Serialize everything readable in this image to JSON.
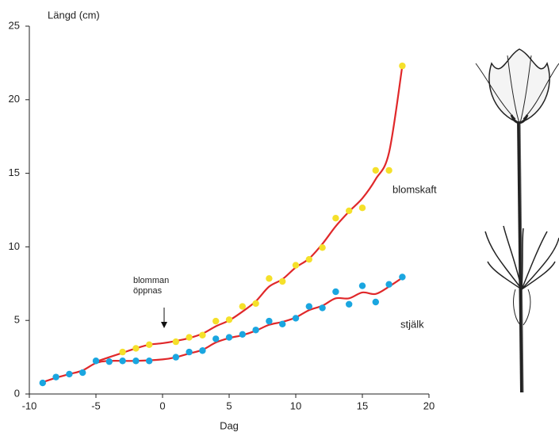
{
  "chart_data": {
    "type": "scatter",
    "title": "Längd (cm)",
    "xlabel": "Dag",
    "annotation": "blomman öppnas",
    "xlim": [
      -10,
      20
    ],
    "xticks": [
      -10,
      -5,
      0,
      5,
      10,
      15,
      20
    ],
    "ylim": [
      0,
      25
    ],
    "yticks": [
      0,
      5,
      10,
      15,
      20,
      25
    ],
    "grid": false,
    "series": [
      {
        "name": "blomskaft",
        "color": "#f5e02a",
        "line_color": "#e0282a",
        "x": [
          -3,
          -2,
          -1,
          1,
          2,
          3,
          4,
          5,
          6,
          7,
          8,
          9,
          10,
          11,
          12,
          13,
          14,
          15,
          16,
          17,
          18
        ],
        "values": [
          2.85,
          3.1,
          3.35,
          3.55,
          3.85,
          4.0,
          4.95,
          5.05,
          5.95,
          6.15,
          7.85,
          7.65,
          8.75,
          9.15,
          9.95,
          11.95,
          12.45,
          12.65,
          15.2,
          15.2,
          22.3
        ],
        "curve_x": [
          -5,
          -4,
          -3,
          -2,
          -1,
          0,
          1,
          2,
          3,
          4,
          5,
          6,
          7,
          8,
          9,
          10,
          11,
          12,
          13,
          14,
          15,
          16,
          17,
          18
        ],
        "curve_values": [
          2.2,
          2.5,
          2.8,
          3.1,
          3.35,
          3.45,
          3.6,
          3.8,
          4.1,
          4.6,
          5.0,
          5.6,
          6.3,
          7.3,
          7.8,
          8.6,
          9.2,
          10.2,
          11.4,
          12.4,
          13.3,
          14.6,
          16.4,
          22.3
        ]
      },
      {
        "name": "stjälk",
        "color": "#1aa6e0",
        "line_color": "#e0282a",
        "x": [
          -9,
          -8,
          -7,
          -6,
          -5,
          -4,
          -3,
          -2,
          -1,
          1,
          2,
          3,
          4,
          5,
          6,
          7,
          8,
          9,
          10,
          11,
          12,
          13,
          14,
          15,
          16,
          17,
          18
        ],
        "values": [
          0.75,
          1.15,
          1.35,
          1.45,
          2.25,
          2.2,
          2.25,
          2.25,
          2.25,
          2.5,
          2.85,
          2.95,
          3.75,
          3.85,
          4.05,
          4.35,
          4.95,
          4.75,
          5.15,
          5.95,
          5.85,
          6.95,
          6.1,
          7.35,
          6.25,
          7.45,
          7.95
        ],
        "curve_x": [
          -9,
          -8,
          -7,
          -6,
          -5,
          -4,
          -2,
          0,
          1,
          2,
          3,
          4,
          5,
          6,
          7,
          8,
          9,
          10,
          11,
          12,
          13,
          14,
          15,
          16,
          17,
          18
        ],
        "curve_values": [
          0.8,
          1.1,
          1.35,
          1.6,
          2.1,
          2.25,
          2.25,
          2.35,
          2.5,
          2.75,
          3.0,
          3.5,
          3.8,
          4.0,
          4.3,
          4.7,
          4.9,
          5.2,
          5.7,
          6.0,
          6.5,
          6.5,
          6.9,
          6.8,
          7.3,
          7.9
        ]
      }
    ]
  }
}
